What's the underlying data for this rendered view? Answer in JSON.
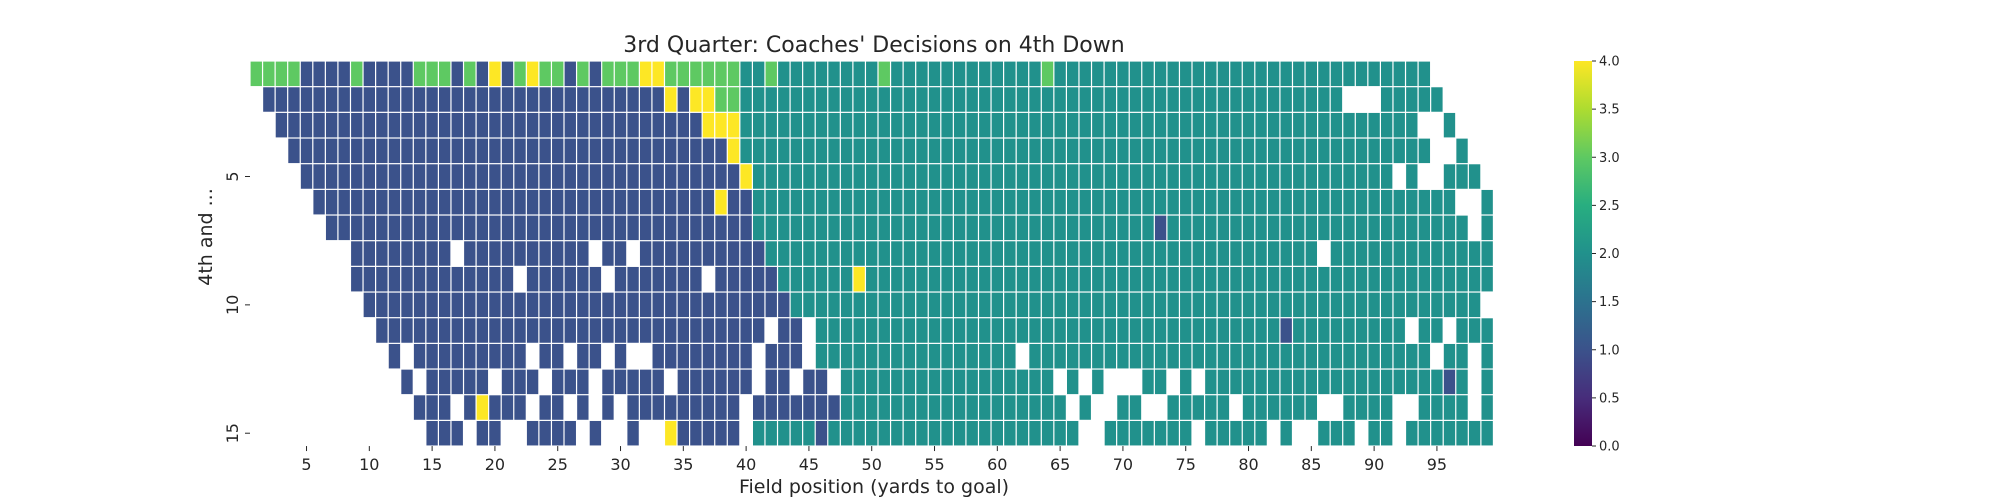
{
  "chart_data": {
    "type": "heatmap",
    "title": "3rd Quarter: Coaches' Decisions on 4th Down",
    "xlabel": "Field position (yards to goal)",
    "ylabel": "4th and ...",
    "x_range": [
      1,
      99
    ],
    "y_range": [
      1,
      15
    ],
    "x_ticks": [
      5,
      10,
      15,
      20,
      25,
      30,
      35,
      40,
      45,
      50,
      55,
      60,
      65,
      70,
      75,
      80,
      85,
      90,
      95
    ],
    "y_ticks": [
      5,
      10,
      15
    ],
    "colormap": "viridis",
    "colorbar": {
      "min": 0.0,
      "max": 4.0,
      "ticks": [
        "0.0",
        "0.5",
        "1.0",
        "1.5",
        "2.0",
        "2.5",
        "3.0",
        "3.5",
        "4.0"
      ]
    },
    "value_colors": {
      "0": "#440154",
      "1": "#3b528b",
      "2": "#21918c",
      "3": "#5ec962",
      "4": "#fde725"
    },
    "rows": [
      {
        "down_distance": 1,
        "values": "3333111131111333131413433131333443333332232222222232222222222223222222222222222222222222222222"
      },
      {
        "down_distance": 2,
        "values": "1111111111111111111111111111111141443322222222222222222222222222222222222222222222222222222222"
      },
      {
        "down_distance": 3,
        "values": "1111111111111111111111111111111111444222222222222222222222222222222222222222222222222222222222"
      },
      {
        "down_distance": 4,
        "values": "1111111111111111111111111111111111142222222222222222222222222222222222222222222222222222222222"
      },
      {
        "down_distance": 5,
        "values": "1111111111111111111111111111111111142222222222222222222222222222222222222222222222222222222222"
      },
      {
        "down_distance": 6,
        "values": "1111111111111111111111111111111141122222222222222222222222222222222222222222222222222222222222"
      },
      {
        "down_distance": 7,
        "values": "1111111111111111111111111111111111222222222222222222222222222222221222222222222222222222222222"
      },
      {
        "down_distance": 8,
        "values": "1111111111111111111111111111111111222222222222222222222222222222222222222222222222222222222222"
      },
      {
        "down_distance": 9,
        "values": "1111111111111111111111111111111111222222422222222222222222222222222222222222222222222222222222"
      },
      {
        "down_distance": 10,
        "values": "1111111111111111111111111111111111222222222222222222222222222222222222222222222222222222222222"
      },
      {
        "down_distance": 11,
        "values": "1111111111111111111111111111111111222222222222222222222222222222222222221222222222222222222222"
      },
      {
        "down_distance": 12,
        "values": "1111111111111111111111111111111111222222222222222222222222222222222222222222222222222222222222"
      },
      {
        "down_distance": 13,
        "values": "1111111111111111111111111111111111222222222222222222222222222222222222222222222222212222222222"
      },
      {
        "down_distance": 14,
        "values": "1111141111111111111111111111111111222222222222222222222222222222222222222222222222222222222212"
      },
      {
        "down_distance": 15,
        "values": "1111111111111111111411111122222122222222222222222222222222222222222222222222222222222222222222"
      }
    ],
    "missing_cells": [
      [
        2,
        88
      ],
      [
        2,
        89
      ],
      [
        2,
        90
      ],
      [
        3,
        94
      ],
      [
        3,
        95
      ],
      [
        4,
        95
      ],
      [
        4,
        96
      ],
      [
        5,
        92
      ],
      [
        5,
        94
      ],
      [
        5,
        95
      ],
      [
        6,
        97
      ],
      [
        6,
        98
      ],
      [
        7,
        98
      ],
      [
        8,
        8
      ],
      [
        8,
        17
      ],
      [
        8,
        28
      ],
      [
        8,
        31
      ],
      [
        8,
        86
      ],
      [
        9,
        22
      ],
      [
        9,
        29
      ],
      [
        9,
        37
      ],
      [
        10,
        99
      ],
      [
        11,
        7
      ],
      [
        11,
        42
      ],
      [
        11,
        45
      ],
      [
        11,
        93
      ],
      [
        11,
        96
      ],
      [
        12,
        9
      ],
      [
        12,
        13
      ],
      [
        12,
        23
      ],
      [
        12,
        26
      ],
      [
        12,
        29
      ],
      [
        12,
        31
      ],
      [
        12,
        32
      ],
      [
        12,
        41
      ],
      [
        12,
        45
      ],
      [
        12,
        62
      ],
      [
        12,
        95
      ],
      [
        12,
        98
      ],
      [
        13,
        11
      ],
      [
        13,
        14
      ],
      [
        13,
        20
      ],
      [
        13,
        24
      ],
      [
        13,
        28
      ],
      [
        13,
        34
      ],
      [
        13,
        41
      ],
      [
        13,
        44
      ],
      [
        13,
        47
      ],
      [
        13,
        65
      ],
      [
        13,
        67
      ],
      [
        13,
        69
      ],
      [
        13,
        70
      ],
      [
        13,
        71
      ],
      [
        13,
        74
      ],
      [
        13,
        76
      ],
      [
        13,
        98
      ],
      [
        14,
        11
      ],
      [
        14,
        12
      ],
      [
        14,
        13
      ],
      [
        14,
        17
      ],
      [
        14,
        23
      ],
      [
        14,
        26
      ],
      [
        14,
        28
      ],
      [
        14,
        30
      ],
      [
        14,
        40
      ],
      [
        14,
        66
      ],
      [
        14,
        68
      ],
      [
        14,
        69
      ],
      [
        14,
        72
      ],
      [
        14,
        73
      ],
      [
        14,
        79
      ],
      [
        14,
        86
      ],
      [
        14,
        87
      ],
      [
        14,
        92
      ],
      [
        14,
        93
      ],
      [
        14,
        98
      ],
      [
        15,
        12
      ],
      [
        15,
        14
      ],
      [
        15,
        18
      ],
      [
        15,
        21
      ],
      [
        15,
        22
      ],
      [
        15,
        27
      ],
      [
        15,
        29
      ],
      [
        15,
        30
      ],
      [
        15,
        32
      ],
      [
        15,
        33
      ],
      [
        15,
        40
      ],
      [
        15,
        67
      ],
      [
        15,
        68
      ],
      [
        15,
        76
      ],
      [
        15,
        82
      ],
      [
        15,
        84
      ],
      [
        15,
        85
      ],
      [
        15,
        89
      ],
      [
        15,
        92
      ],
      [
        16,
        13
      ],
      [
        16,
        20
      ],
      [
        16,
        33
      ],
      [
        16,
        34
      ],
      [
        16,
        35
      ],
      [
        16,
        53
      ],
      [
        16,
        68
      ],
      [
        16,
        82
      ],
      [
        16,
        88
      ],
      [
        16,
        91
      ],
      [
        16,
        93
      ]
    ]
  }
}
